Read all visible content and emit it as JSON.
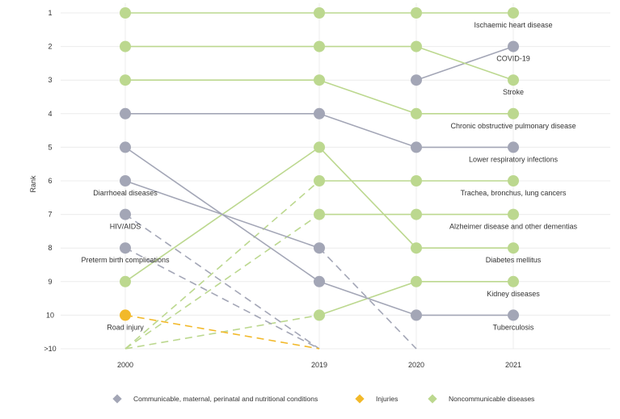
{
  "chart_data": {
    "type": "line",
    "ylabel": "Rank",
    "x": [
      "2000",
      "2019",
      "2020",
      "2021"
    ],
    "y_ticks": [
      "1",
      "2",
      "3",
      "4",
      "5",
      "6",
      "7",
      "8",
      "9",
      "10",
      ">10"
    ],
    "colors": {
      "communicable": "#a3a6b6",
      "injuries": "#f2b92a",
      "noncommunicable": "#bcd88f"
    },
    "legend": [
      {
        "group": "communicable",
        "label": "Communicable, maternal, perinatal and nutritional conditions"
      },
      {
        "group": "injuries",
        "label": "Injuries"
      },
      {
        "group": "noncommunicable",
        "label": "Noncommunicable diseases"
      }
    ],
    "series": [
      {
        "name": "Ischaemic heart disease",
        "group": "noncommunicable",
        "ranks": [
          1,
          1,
          1,
          1
        ],
        "label_at": "2021"
      },
      {
        "name": "COVID-19",
        "group": "communicable",
        "ranks": [
          null,
          null,
          3,
          2
        ],
        "label_at": "2021"
      },
      {
        "name": "Stroke",
        "group": "noncommunicable",
        "ranks": [
          2,
          2,
          2,
          3
        ],
        "label_at": "2021"
      },
      {
        "name": "Chronic obstructive pulmonary disease",
        "group": "noncommunicable",
        "ranks": [
          3,
          3,
          4,
          4
        ],
        "label_at": "2021"
      },
      {
        "name": "Lower respiratory infections",
        "group": "communicable",
        "ranks": [
          4,
          4,
          5,
          5
        ],
        "label_at": "2021"
      },
      {
        "name": "Trachea, bronchus, lung cancers",
        "group": "noncommunicable",
        "ranks": [
          ">10",
          6,
          6,
          6
        ],
        "label_at": "2021"
      },
      {
        "name": "Alzheimer disease and other dementias",
        "group": "noncommunicable",
        "ranks": [
          ">10",
          7,
          7,
          7
        ],
        "label_at": "2021"
      },
      {
        "name": "Diabetes mellitus",
        "group": "noncommunicable",
        "ranks": [
          9,
          5,
          8,
          8
        ],
        "label_at": "2021"
      },
      {
        "name": "Kidney diseases",
        "group": "noncommunicable",
        "ranks": [
          ">10",
          10,
          9,
          9
        ],
        "label_at": "2021"
      },
      {
        "name": "Tuberculosis",
        "group": "communicable",
        "ranks": [
          5,
          9,
          10,
          10
        ],
        "label_at": "2021"
      },
      {
        "name": "Diarrhoeal diseases",
        "group": "communicable",
        "ranks": [
          6,
          8,
          ">10",
          null
        ],
        "label_at": "2000"
      },
      {
        "name": "HIV/AIDS",
        "group": "communicable",
        "ranks": [
          7,
          ">10",
          null,
          null
        ],
        "label_at": "2000"
      },
      {
        "name": "Preterm birth complications",
        "group": "communicable",
        "ranks": [
          8,
          ">10",
          null,
          null
        ],
        "label_at": "2000"
      },
      {
        "name": "Road injury",
        "group": "injuries",
        "ranks": [
          10,
          ">10",
          null,
          null
        ],
        "label_at": "2000"
      }
    ]
  }
}
